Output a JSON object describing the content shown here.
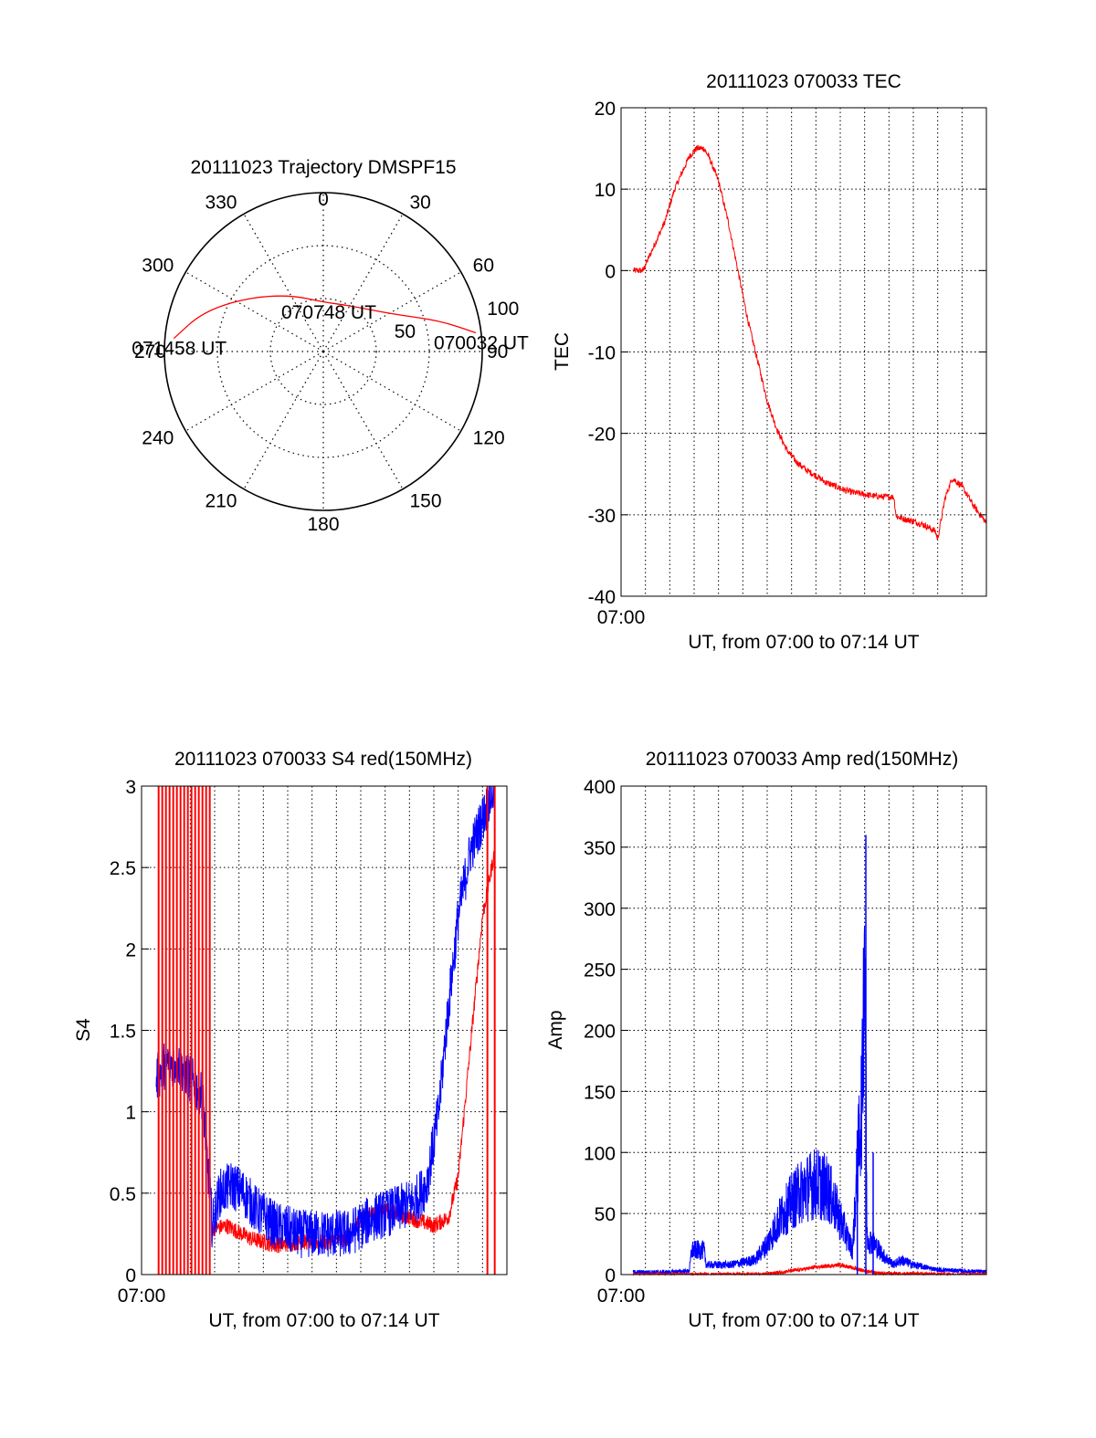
{
  "colors": {
    "red": "#ff0000",
    "blue": "#0000ff",
    "axis": "#000000",
    "grid": "#000000"
  },
  "chart_data": [
    {
      "type": "polar",
      "title": "20111023 Trajectory DMSPF15",
      "angle_labels": [
        "0",
        "30",
        "60",
        "90",
        "120",
        "150",
        "180",
        "210",
        "240",
        "270",
        "300",
        "330"
      ],
      "angles_deg": [
        0,
        30,
        60,
        90,
        120,
        150,
        180,
        210,
        240,
        270,
        300,
        330
      ],
      "ring_labels": [
        {
          "label": "50",
          "zenith": 50
        },
        {
          "label": "100",
          "zenith": 100
        }
      ],
      "r_max": 90,
      "grid": true,
      "trajectory": {
        "color": "red",
        "points": [
          {
            "az": 83,
            "r": 87
          },
          {
            "az": 75,
            "r": 68
          },
          {
            "az": 62,
            "r": 45
          },
          {
            "az": 30,
            "r": 30
          },
          {
            "az": 0,
            "r": 28
          },
          {
            "az": -30,
            "r": 37
          },
          {
            "az": -55,
            "r": 53
          },
          {
            "az": -72,
            "r": 72
          },
          {
            "az": -85,
            "r": 85
          }
        ]
      },
      "annotations": [
        {
          "label": "070032 UT",
          "az": 83,
          "r": 87
        },
        {
          "label": "070748 UT",
          "az": 0,
          "r": 28
        },
        {
          "label": "071458 UT",
          "az": -85,
          "r": 85
        }
      ]
    },
    {
      "type": "line",
      "title": "20111023 070033 TEC",
      "xlabel": "UT, from 07:00 to 07:14 UT",
      "ylabel": "TEC",
      "xtick_labels": [
        "07:00"
      ],
      "xlim": [
        0,
        15
      ],
      "ylim": [
        -40,
        20
      ],
      "yticks": [
        -40,
        -30,
        -20,
        -10,
        0,
        10,
        20
      ],
      "grid": true,
      "series": [
        {
          "color": "red",
          "noise": 0.4,
          "x": [
            0.5,
            0.9,
            1.2,
            1.5,
            1.8,
            2.0,
            2.2,
            2.5,
            2.8,
            3.1,
            3.4,
            3.6,
            4.0,
            4.4,
            4.8,
            5.2,
            5.6,
            6.0,
            6.4,
            6.8,
            7.2,
            7.6,
            8.0,
            8.4,
            8.8,
            9.2,
            9.6,
            10.0,
            10.4,
            10.8,
            11.2,
            11.3,
            11.6,
            12.0,
            12.4,
            12.9,
            13.0,
            13.3,
            13.6,
            14.0,
            14.5,
            15.0
          ],
          "y": [
            0,
            0,
            2,
            4,
            6,
            8,
            10,
            12,
            14,
            15,
            15,
            14,
            11,
            6,
            0,
            -6,
            -11,
            -16,
            -19.5,
            -22,
            -23.5,
            -24.5,
            -25.2,
            -26,
            -26.5,
            -27,
            -27.3,
            -27.5,
            -27.7,
            -27.8,
            -27.8,
            -30.2,
            -30.5,
            -30.8,
            -31.2,
            -32,
            -33,
            -28,
            -25.5,
            -26.5,
            -29,
            -31
          ]
        }
      ]
    },
    {
      "type": "line",
      "title": "20111023 070033 S4 red(150MHz)",
      "xlabel": "UT, from 07:00 to 07:14 UT",
      "ylabel": "S4",
      "xtick_labels": [
        "07:00"
      ],
      "xlim": [
        0,
        15
      ],
      "ylim": [
        0,
        3
      ],
      "yticks": [
        0,
        0.5,
        1,
        1.5,
        2,
        2.5,
        3
      ],
      "ytick_labels": [
        "0",
        "0.5",
        "1",
        "1.5",
        "2",
        "2.5",
        "3"
      ],
      "grid": true,
      "series": [
        {
          "color": "red",
          "noise": 0.05,
          "x": [
            2.9,
            3.5,
            4.5,
            5.5,
            6.5,
            7.5,
            8.5,
            9.0,
            10.0,
            11.0,
            12.0,
            12.6,
            13.0,
            13.5,
            14.0,
            14.5
          ],
          "y": [
            0.28,
            0.3,
            0.22,
            0.18,
            0.2,
            0.2,
            0.22,
            0.35,
            0.4,
            0.35,
            0.3,
            0.35,
            0.6,
            1.4,
            2.2,
            2.6
          ]
        },
        {
          "color": "blue",
          "noise": 0.15,
          "x": [
            0.6,
            1.0,
            1.5,
            2.0,
            2.5,
            2.9,
            3.2,
            3.7,
            4.2,
            4.7,
            5.5,
            6.5,
            7.5,
            8.5,
            9.5,
            10.5,
            11.2,
            11.7,
            12.2,
            12.5,
            13.0,
            13.5,
            14.0,
            14.5
          ],
          "y": [
            1.2,
            1.3,
            1.3,
            1.2,
            1.1,
            0.3,
            0.5,
            0.55,
            0.5,
            0.4,
            0.3,
            0.25,
            0.25,
            0.25,
            0.35,
            0.4,
            0.45,
            0.55,
            1.0,
            1.5,
            2.2,
            2.6,
            2.8,
            3.0
          ]
        }
      ],
      "red_spike_x": [
        0.7,
        0.85,
        1.0,
        1.15,
        1.3,
        1.45,
        1.6,
        1.75,
        1.9,
        2.05,
        2.2,
        2.35,
        2.5,
        2.65,
        2.8,
        14.2,
        14.5
      ]
    },
    {
      "type": "line",
      "title": "20111023 070033 Amp red(150MHz)",
      "xlabel": "UT, from 07:00 to 07:14 UT",
      "ylabel": "Amp",
      "xtick_labels": [
        "07:00"
      ],
      "xlim": [
        0,
        15
      ],
      "ylim": [
        0,
        400
      ],
      "yticks": [
        0,
        50,
        100,
        150,
        200,
        250,
        300,
        350,
        400
      ],
      "grid": true,
      "series": [
        {
          "color": "blue",
          "noise": 12,
          "x": [
            0.5,
            2.0,
            2.8,
            2.9,
            3.4,
            3.5,
            4.5,
            5.5,
            6.0,
            6.5,
            7.0,
            7.5,
            8.0,
            8.5,
            9.0,
            9.5,
            9.9,
            10.0,
            10.1,
            10.4,
            10.8,
            11.2,
            11.5,
            12.0,
            13.0,
            14.0,
            15.0
          ],
          "y": [
            2,
            2,
            3,
            20,
            20,
            8,
            8,
            12,
            25,
            45,
            60,
            70,
            75,
            70,
            45,
            20,
            150,
            290,
            30,
            25,
            15,
            8,
            12,
            8,
            4,
            3,
            2
          ]
        },
        {
          "color": "red",
          "noise": 1.5,
          "x": [
            0.5,
            3.0,
            6.0,
            7.0,
            8.0,
            9.0,
            9.6,
            10.5,
            15.0
          ],
          "y": [
            0,
            0,
            0.5,
            3,
            6,
            8,
            5,
            1,
            0
          ]
        }
      ],
      "spikes": [
        {
          "color": "blue",
          "x": 9.7,
          "y": 118
        },
        {
          "color": "blue",
          "x": 10.05,
          "y": 360
        },
        {
          "color": "blue",
          "x": 10.35,
          "y": 100
        }
      ]
    }
  ]
}
